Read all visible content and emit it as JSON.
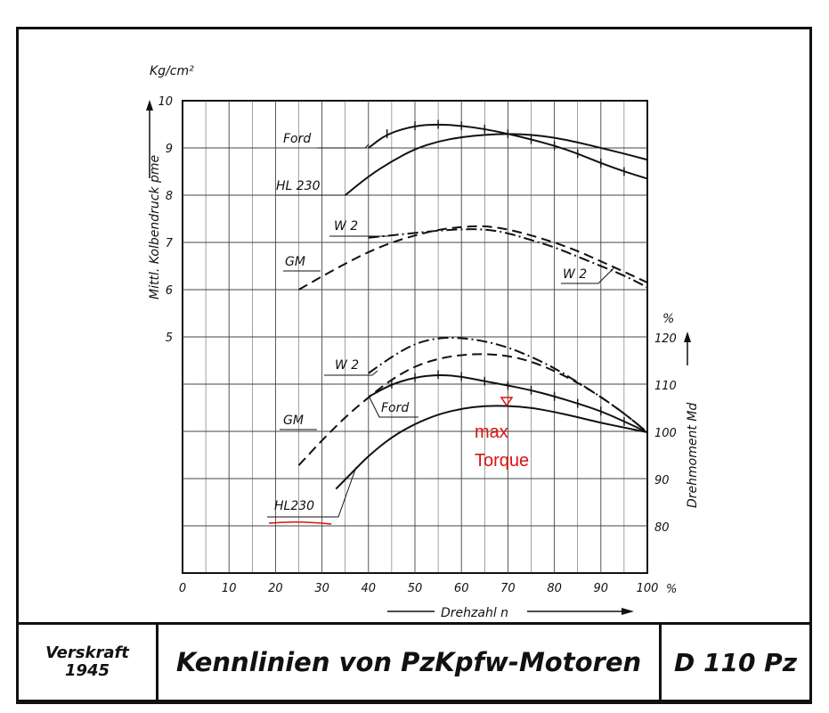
{
  "chart_data": {
    "type": "line",
    "x_axis": {
      "label": "Drehzahl n",
      "unit": "%",
      "range": [
        0,
        100
      ],
      "ticks": [
        0,
        10,
        20,
        30,
        40,
        50,
        60,
        70,
        80,
        90,
        100
      ]
    },
    "left_axis": {
      "label": "Mittl. Kolbendruck pme",
      "unit": "Kg/cm²",
      "ticks": [
        5,
        6,
        7,
        8,
        9,
        10
      ]
    },
    "right_axis": {
      "label": "Drehmoment Md",
      "unit": "%",
      "ticks": [
        80,
        90,
        100,
        110,
        120
      ]
    },
    "grid": true,
    "series_pme": [
      {
        "name": "Ford",
        "style": "solid-cross",
        "points": [
          [
            40,
            9.0
          ],
          [
            44,
            9.3
          ],
          [
            50,
            9.47
          ],
          [
            55,
            9.5
          ],
          [
            60,
            9.47
          ],
          [
            65,
            9.4
          ],
          [
            70,
            9.3
          ],
          [
            75,
            9.18
          ],
          [
            80,
            9.05
          ],
          [
            85,
            8.88
          ],
          [
            90,
            8.68
          ],
          [
            95,
            8.5
          ],
          [
            100,
            8.35
          ]
        ]
      },
      {
        "name": "HL 230",
        "style": "solid",
        "points": [
          [
            35,
            8.0
          ],
          [
            40,
            8.4
          ],
          [
            45,
            8.72
          ],
          [
            50,
            8.98
          ],
          [
            55,
            9.14
          ],
          [
            60,
            9.23
          ],
          [
            65,
            9.28
          ],
          [
            70,
            9.3
          ],
          [
            75,
            9.28
          ],
          [
            80,
            9.22
          ],
          [
            85,
            9.12
          ],
          [
            90,
            9.0
          ],
          [
            95,
            8.88
          ],
          [
            100,
            8.75
          ]
        ]
      },
      {
        "name": "W 2",
        "style": "dash-dot",
        "points": [
          [
            40,
            7.1
          ],
          [
            45,
            7.15
          ],
          [
            50,
            7.2
          ],
          [
            55,
            7.25
          ],
          [
            60,
            7.28
          ],
          [
            65,
            7.28
          ],
          [
            70,
            7.2
          ],
          [
            75,
            7.05
          ],
          [
            80,
            6.9
          ],
          [
            85,
            6.7
          ],
          [
            90,
            6.5
          ],
          [
            95,
            6.3
          ],
          [
            100,
            6.05
          ]
        ]
      },
      {
        "name": "GM",
        "style": "dashed",
        "points": [
          [
            25,
            6.0
          ],
          [
            30,
            6.28
          ],
          [
            35,
            6.55
          ],
          [
            40,
            6.8
          ],
          [
            45,
            7.0
          ],
          [
            50,
            7.15
          ],
          [
            55,
            7.27
          ],
          [
            60,
            7.33
          ],
          [
            65,
            7.35
          ],
          [
            70,
            7.28
          ],
          [
            75,
            7.15
          ],
          [
            80,
            7.0
          ],
          [
            85,
            6.82
          ],
          [
            90,
            6.6
          ],
          [
            95,
            6.38
          ],
          [
            100,
            6.15
          ]
        ]
      }
    ],
    "series_torque": [
      {
        "name": "W 2",
        "style": "dash-dot",
        "points": [
          [
            40,
            112.5
          ],
          [
            45,
            116
          ],
          [
            50,
            118.8
          ],
          [
            55,
            120
          ],
          [
            60,
            120
          ],
          [
            65,
            119.3
          ],
          [
            70,
            118
          ],
          [
            75,
            116
          ],
          [
            80,
            113.6
          ],
          [
            85,
            110.6
          ],
          [
            90,
            107.5
          ],
          [
            95,
            104
          ],
          [
            100,
            100
          ]
        ]
      },
      {
        "name": "Ford",
        "style": "solid-cross",
        "points": [
          [
            40,
            107.5
          ],
          [
            45,
            110.2
          ],
          [
            50,
            111.6
          ],
          [
            55,
            112.2
          ],
          [
            60,
            111.8
          ],
          [
            65,
            110.8
          ],
          [
            70,
            109.9
          ],
          [
            75,
            108.9
          ],
          [
            80,
            107.6
          ],
          [
            85,
            106.1
          ],
          [
            90,
            104.5
          ],
          [
            95,
            102.3
          ],
          [
            100,
            100
          ]
        ]
      },
      {
        "name": "GM",
        "style": "dashed",
        "points": [
          [
            25,
            93
          ],
          [
            30,
            98.3
          ],
          [
            35,
            103.2
          ],
          [
            40,
            107.4
          ],
          [
            45,
            111.2
          ],
          [
            50,
            114
          ],
          [
            55,
            115.6
          ],
          [
            60,
            116.4
          ],
          [
            65,
            116.6
          ],
          [
            70,
            116.2
          ],
          [
            75,
            115
          ],
          [
            80,
            113
          ],
          [
            85,
            110.5
          ],
          [
            90,
            107.5
          ],
          [
            95,
            104
          ],
          [
            100,
            100
          ]
        ]
      },
      {
        "name": "HL230",
        "style": "solid",
        "points": [
          [
            33,
            88
          ],
          [
            37,
            92
          ],
          [
            40,
            95
          ],
          [
            45,
            99
          ],
          [
            50,
            101.8
          ],
          [
            55,
            103.8
          ],
          [
            60,
            105
          ],
          [
            65,
            105.6
          ],
          [
            70,
            105.6
          ],
          [
            75,
            105.2
          ],
          [
            80,
            104.3
          ],
          [
            85,
            103.2
          ],
          [
            90,
            102
          ],
          [
            95,
            101
          ],
          [
            100,
            100
          ]
        ]
      }
    ],
    "annotation": {
      "text_line1": "max",
      "text_line2": "Torque",
      "color": "#dd1111"
    }
  },
  "labels": {
    "pme_unit_top": "Kg/cm²",
    "ford_top": "Ford",
    "hl230_top": "HL 230",
    "w2_top": "W 2",
    "gm_top": "GM",
    "w2_right": "W 2",
    "w2_bottom": "W 2",
    "ford_bottom": "Ford",
    "gm_bottom": "GM",
    "hl230_bottom": "HL230",
    "right_pct_top": "%",
    "x_pct": "%"
  },
  "footer": {
    "left_line1": "Verskraft",
    "left_line2": "1945",
    "title": "Kennlinien von PzKpfw-Motoren",
    "code": "D 110 Pz"
  }
}
